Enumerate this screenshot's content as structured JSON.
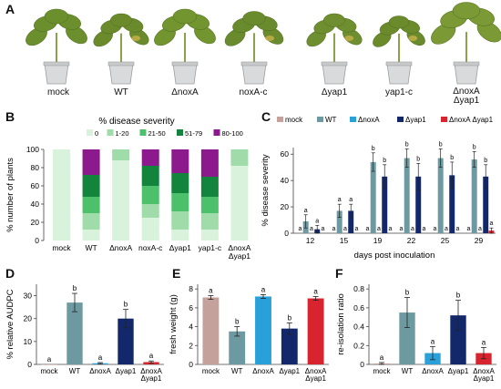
{
  "panels": {
    "A": "A",
    "B": "B",
    "C": "C",
    "D": "D",
    "E": "E",
    "F": "F"
  },
  "panel_a": {
    "labels": [
      "mock",
      "WT",
      "ΔnoxA",
      "noxA-c",
      "Δyap1",
      "yap1-c",
      "ΔnoxA\nΔyap1"
    ]
  },
  "colors": {
    "mock": "#c4a29b",
    "wt": "#6d9aa0",
    "noxA": "#2aa0d8",
    "yap1": "#12286a",
    "double": "#d8242f",
    "sev0": "#d9f2dc",
    "sev1": "#9fdcaa",
    "sev2": "#4cc06a",
    "sev3": "#13843c",
    "sev4": "#8c1a8c"
  },
  "chart_data": [
    {
      "id": "B",
      "type": "bar",
      "stacked": true,
      "title": "% disease severity",
      "ylabel": "% number of plants",
      "ylim": [
        0,
        100
      ],
      "yticks": [
        0,
        20,
        40,
        60,
        80,
        100
      ],
      "categories": [
        "mock",
        "WT",
        "ΔnoxA",
        "noxA-c",
        "Δyap1",
        "yap1-c",
        "ΔnoxA Δyap1"
      ],
      "series": [
        {
          "name": "0",
          "values": [
            100,
            12,
            88,
            25,
            12,
            12,
            82
          ]
        },
        {
          "name": "1-20",
          "values": [
            0,
            18,
            12,
            15,
            20,
            18,
            18
          ]
        },
        {
          "name": "21-50",
          "values": [
            0,
            18,
            0,
            20,
            20,
            18,
            0
          ]
        },
        {
          "name": "51-79",
          "values": [
            0,
            24,
            0,
            22,
            22,
            22,
            0
          ]
        },
        {
          "name": "80-100",
          "values": [
            0,
            28,
            0,
            18,
            26,
            30,
            0
          ]
        }
      ]
    },
    {
      "id": "C",
      "type": "bar",
      "xlabel": "days post inoculation",
      "ylabel": "% disease severity",
      "ylim": [
        0,
        65
      ],
      "yticks": [
        0,
        20,
        40,
        60
      ],
      "categories": [
        "12",
        "15",
        "19",
        "22",
        "25",
        "29"
      ],
      "series": [
        {
          "name": "mock",
          "values": [
            0,
            0,
            0,
            0,
            0,
            0
          ],
          "err": [
            0,
            0,
            0,
            0,
            0,
            0
          ],
          "letters": [
            "a",
            "a",
            "a",
            "a",
            "a",
            "a"
          ]
        },
        {
          "name": "WT",
          "values": [
            9,
            17,
            54,
            57,
            57,
            56
          ],
          "err": [
            5,
            5,
            7,
            7,
            7,
            6
          ],
          "letters": [
            "a",
            "a",
            "b",
            "b",
            "b",
            "b"
          ]
        },
        {
          "name": "ΔnoxA",
          "values": [
            0,
            0,
            0,
            0,
            0,
            0
          ],
          "err": [
            0,
            0,
            0,
            0,
            0,
            0
          ],
          "letters": [
            "a",
            "a",
            "a",
            "a",
            "a",
            "a"
          ]
        },
        {
          "name": "Δyap1",
          "values": [
            3,
            17,
            43,
            43,
            44,
            43
          ],
          "err": [
            3,
            5,
            9,
            10,
            10,
            9
          ],
          "letters": [
            "a",
            "a",
            "b",
            "b",
            "b",
            "b"
          ]
        },
        {
          "name": "ΔnoxA Δyap1",
          "values": [
            0,
            0,
            0,
            0,
            0,
            2
          ],
          "err": [
            0,
            0,
            0,
            0,
            0,
            2
          ],
          "letters": [
            "a",
            "a",
            "a",
            "a",
            "a",
            "a"
          ]
        }
      ]
    },
    {
      "id": "D",
      "type": "bar",
      "ylabel": "% relative AUDPC",
      "ylim": [
        0,
        35
      ],
      "yticks": [
        0,
        10,
        20,
        30
      ],
      "categories": [
        "mock",
        "WT",
        "ΔnoxA",
        "Δyap1",
        "ΔnoxA Δyap1"
      ],
      "values": [
        0,
        27,
        0.5,
        20,
        1
      ],
      "err": [
        0,
        4,
        0.3,
        4,
        0.5
      ],
      "letters": [
        "a",
        "b",
        "a",
        "b",
        "a"
      ]
    },
    {
      "id": "E",
      "type": "bar",
      "ylabel": "fresh weight (g)",
      "ylim": [
        0,
        8.5
      ],
      "yticks": [
        0,
        2,
        4,
        6,
        8
      ],
      "categories": [
        "mock",
        "WT",
        "ΔnoxA",
        "Δyap1",
        "ΔnoxA Δyap1"
      ],
      "values": [
        7.1,
        3.5,
        7.2,
        3.8,
        7.0
      ],
      "err": [
        0.2,
        0.5,
        0.2,
        0.6,
        0.2
      ],
      "letters": [
        "a",
        "b",
        "a",
        "b",
        "a"
      ]
    },
    {
      "id": "F",
      "type": "bar",
      "ylabel": "re-isolation ratio",
      "ylim": [
        0,
        0.85
      ],
      "yticks": [
        0,
        0.2,
        0.4,
        0.6,
        0.8
      ],
      "categories": [
        "mock",
        "WT",
        "ΔnoxA",
        "Δyap1",
        "ΔnoxA Δyap1"
      ],
      "values": [
        0.01,
        0.55,
        0.12,
        0.52,
        0.12
      ],
      "err": [
        0.01,
        0.16,
        0.07,
        0.16,
        0.06
      ],
      "letters": [
        "a",
        "b",
        "a",
        "b",
        "a"
      ]
    }
  ]
}
